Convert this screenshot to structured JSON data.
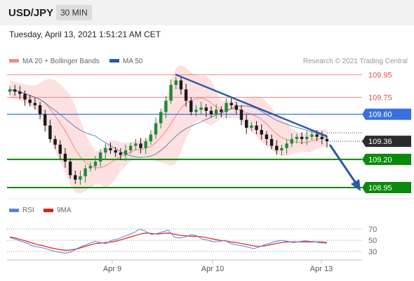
{
  "header": {
    "symbol": "USD/JPY",
    "interval": "30 MIN"
  },
  "datetime": "Tuesday, April 13, 2021 1:51:21 AM CET",
  "legend": [
    {
      "label": "MA 20 + Bollinger Bands",
      "color": "#f28a8a"
    },
    {
      "label": "MA 50",
      "color": "#2a5aa8"
    }
  ],
  "watermark": "Research © 2021 Trading Central",
  "colors": {
    "up": "#1f8a3a",
    "down": "#1a1a1a",
    "resistance": "#d9534f",
    "pivot": "#3a6fe0",
    "support": "#0a8a0a",
    "trend": "#2a5aa8",
    "rsi": "#5a82d6",
    "rsi_ma": "#e02020",
    "band": "#fde0e0"
  },
  "price_labels": [
    {
      "text": "109.95",
      "kind": "resistance"
    },
    {
      "text": "109.75",
      "kind": "resistance"
    },
    {
      "text": "109.60",
      "kind": "pivot"
    },
    {
      "text": "109.36",
      "kind": "current"
    },
    {
      "text": "109.20",
      "kind": "support"
    },
    {
      "text": "108.95",
      "kind": "support"
    }
  ],
  "rsi_legend": [
    {
      "label": "RSI",
      "color": "#5a82d6"
    },
    {
      "label": "9MA",
      "color": "#e02020"
    }
  ],
  "rsi_ticks": [
    "70",
    "50",
    "30"
  ],
  "x_ticks": [
    "Apr 9",
    "Apr 10",
    "Apr 13"
  ],
  "chart_data": {
    "type": "candlestick",
    "series": [
      {
        "name": "MA 20 + Bollinger Bands"
      },
      {
        "name": "MA 50"
      }
    ],
    "price_close": [
      109.82,
      109.8,
      109.78,
      109.73,
      109.7,
      109.68,
      109.6,
      109.5,
      109.38,
      109.33,
      109.25,
      109.18,
      109.06,
      109.02,
      109.05,
      109.12,
      109.14,
      109.18,
      109.26,
      109.3,
      109.28,
      109.26,
      109.24,
      109.28,
      109.32,
      109.34,
      109.3,
      109.36,
      109.42,
      109.52,
      109.62,
      109.72,
      109.86,
      109.9,
      109.82,
      109.72,
      109.62,
      109.64,
      109.66,
      109.63,
      109.6,
      109.64,
      109.62,
      109.7,
      109.68,
      109.64,
      109.55,
      109.48,
      109.5,
      109.46,
      109.42,
      109.38,
      109.32,
      109.28,
      109.3,
      109.34,
      109.38,
      109.4,
      109.38,
      109.4,
      109.42,
      109.4,
      109.38,
      109.36
    ],
    "ylim": [
      108.85,
      109.99
    ],
    "levels": {
      "resistance": [
        109.95,
        109.75
      ],
      "pivot": 109.6,
      "current": 109.36,
      "support": [
        109.2,
        108.95
      ]
    },
    "x_tick_labels": [
      "Apr 9",
      "Apr 10",
      "Apr 13"
    ],
    "rsi": [
      55,
      52,
      48,
      45,
      40,
      38,
      36,
      33,
      30,
      28,
      27,
      30,
      36,
      40,
      44,
      48,
      46,
      44,
      50,
      52,
      56,
      60,
      64,
      70,
      66,
      60,
      62,
      65,
      68,
      56,
      54,
      56,
      60,
      58,
      52,
      50,
      47,
      48,
      50,
      44,
      42,
      40,
      38,
      35,
      38,
      42,
      45,
      48,
      50,
      48,
      46,
      47,
      49,
      48,
      47,
      45,
      45
    ],
    "rsi_ma": [
      56,
      54,
      51,
      48,
      45,
      42,
      40,
      37,
      35,
      33,
      32,
      33,
      35,
      38,
      41,
      44,
      45,
      46,
      47,
      49,
      52,
      55,
      58,
      61,
      63,
      62,
      61,
      62,
      63,
      61,
      59,
      58,
      57,
      57,
      56,
      54,
      52,
      50,
      49,
      47,
      46,
      44,
      42,
      40,
      39,
      40,
      42,
      44,
      46,
      47,
      47,
      47,
      47,
      47,
      47,
      47,
      46
    ],
    "rsi_ylim": [
      10,
      90
    ]
  }
}
